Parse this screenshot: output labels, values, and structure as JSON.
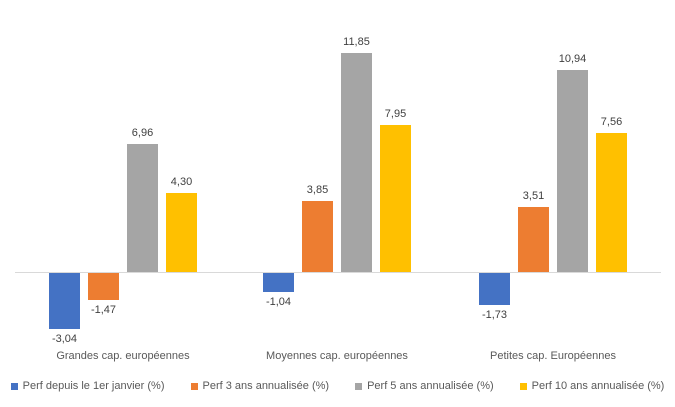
{
  "chart_data": {
    "type": "bar",
    "categories": [
      "Grandes cap. européennes",
      "Moyennes cap. européennes",
      "Petites cap. Européennes"
    ],
    "series": [
      {
        "name": "Perf depuis le 1er janvier (%)",
        "color": "#4472C4",
        "values": [
          -3.04,
          -1.04,
          -1.73
        ],
        "labels": [
          "-3,04",
          "-1,04",
          "-1,73"
        ]
      },
      {
        "name": "Perf 3 ans annualisée (%)",
        "color": "#ED7D31",
        "values": [
          -1.47,
          3.85,
          3.51
        ],
        "labels": [
          "-1,47",
          "3,85",
          "3,51"
        ]
      },
      {
        "name": "Perf 5 ans annualisée (%)",
        "color": "#A5A5A5",
        "values": [
          6.96,
          11.85,
          10.94
        ],
        "labels": [
          "6,96",
          "11,85",
          "10,94"
        ]
      },
      {
        "name": "Perf 10 ans annualisée (%)",
        "color": "#FFC000",
        "values": [
          4.3,
          7.95,
          7.56
        ],
        "labels": [
          "4,30",
          "7,95",
          "7,56"
        ]
      }
    ],
    "title": "",
    "xlabel": "",
    "ylabel": "",
    "ylim": [
      -4,
      13
    ],
    "grid": false,
    "y_axis_labels": false,
    "legend_position": "bottom",
    "decimal_separator": ",",
    "colors": {
      "axis_line": "#D9D9D9",
      "value_label": "#404040",
      "category_label": "#595959",
      "background": "#FFFFFF"
    }
  }
}
